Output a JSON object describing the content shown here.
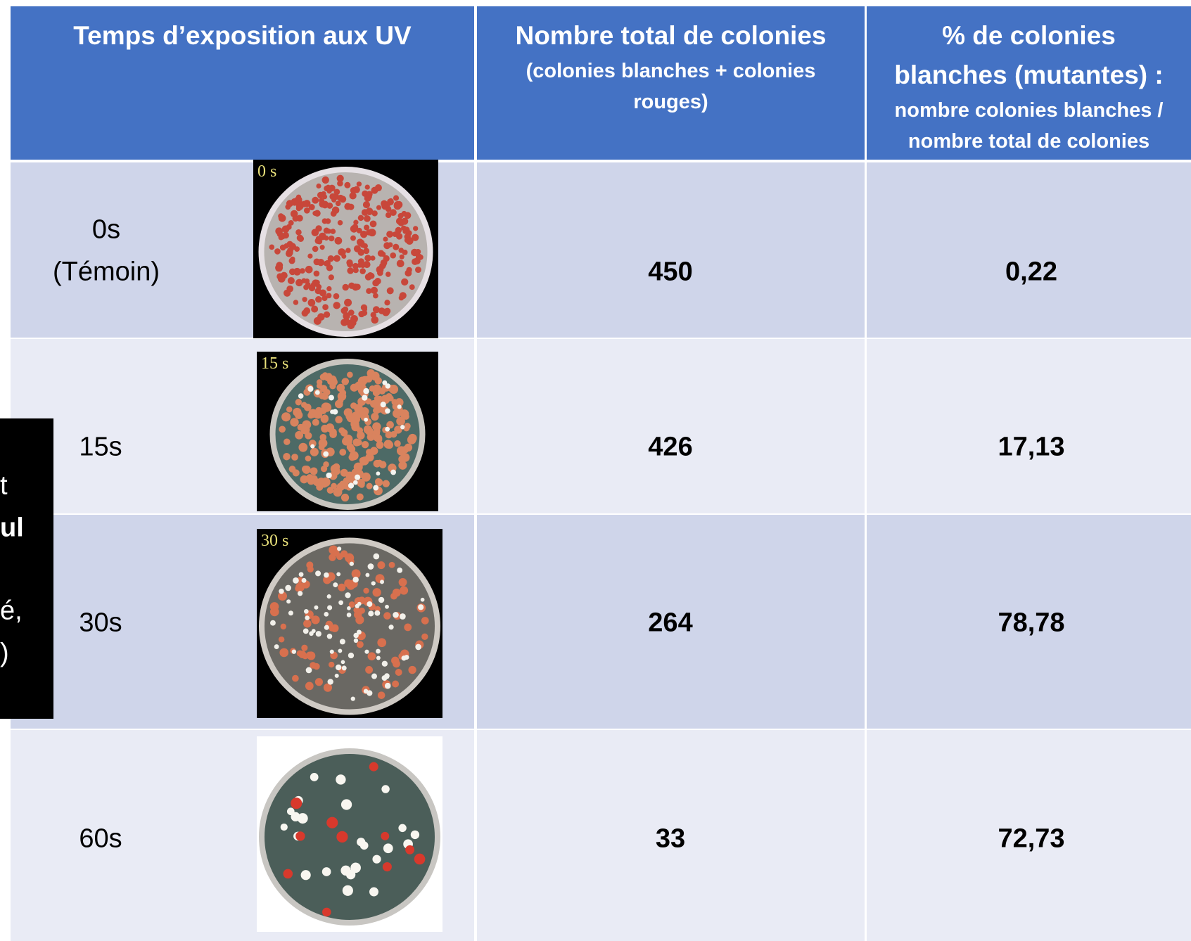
{
  "header": {
    "col1": "Temps d’exposition aux UV",
    "col2_title": "Nombre total de colonies",
    "col2_sub": "(colonies blanches + colonies rouges)",
    "col3_title": [
      "% de colonies",
      "blanches (mutantes) :"
    ],
    "col3_sub": "nombre colonies blanches / nombre total de colonies"
  },
  "rows": [
    {
      "time": "0s",
      "note": "(Témoin)",
      "plate_label": "0 s",
      "total": "450",
      "percent": "0,22"
    },
    {
      "time": "15s",
      "plate_label": "15 s",
      "total": "426",
      "percent": "17,13"
    },
    {
      "time": "30s",
      "plate_label": "30 s",
      "total": "264",
      "percent": "78,78"
    },
    {
      "time": "60s",
      "total": "33",
      "percent": "72,73"
    }
  ],
  "side_fragments": [
    "t",
    "ul",
    "é,",
    ")"
  ]
}
